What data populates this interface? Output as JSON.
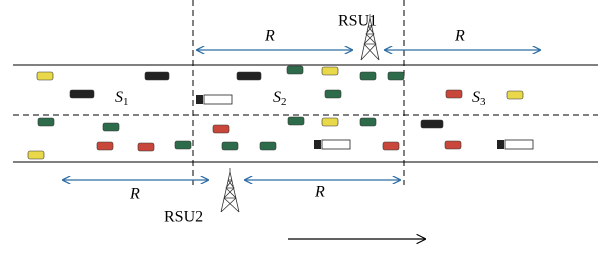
{
  "rsus": [
    {
      "label": "RSU1"
    },
    {
      "label": "RSU2"
    }
  ],
  "ranges": [
    "R",
    "R",
    "R",
    "R"
  ],
  "segments": [
    {
      "letter": "S",
      "index": "1"
    },
    {
      "letter": "S",
      "index": "2"
    },
    {
      "letter": "S",
      "index": "3"
    }
  ]
}
